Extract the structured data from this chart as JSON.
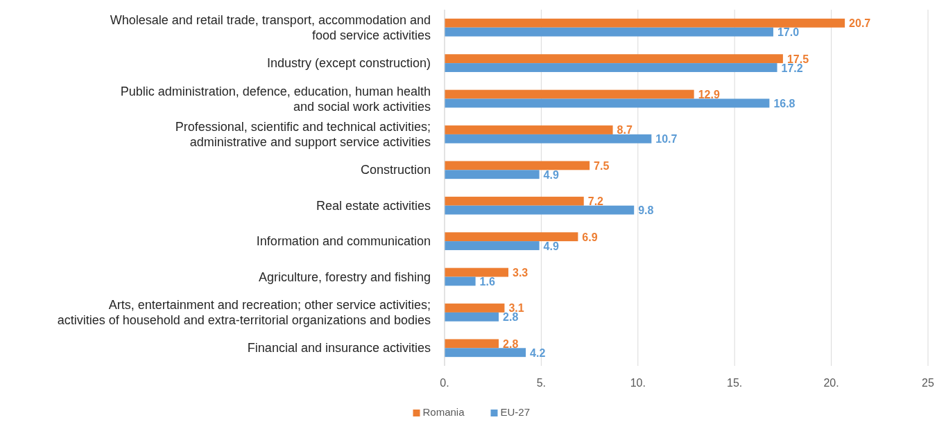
{
  "chart_data": {
    "type": "bar",
    "orientation": "horizontal",
    "categories": [
      "Wholesale and retail trade, transport, accommodation and\nfood service activities",
      "Industry (except construction)",
      "Public administration, defence, education, human health\nand social work activities",
      "Professional, scientific and technical activities;\nadministrative and support service activities",
      "Construction",
      "Real estate activities",
      "Information and communication",
      "Agriculture, forestry and fishing",
      "Arts, entertainment and recreation; other service activities;\nactivities of household and extra-territorial organizations and bodies",
      "Financial and insurance activities"
    ],
    "series": [
      {
        "name": "Romania",
        "color": "#ed7d31",
        "values": [
          20.7,
          17.5,
          12.9,
          8.7,
          7.5,
          7.2,
          6.9,
          3.3,
          3.1,
          2.8
        ],
        "value_labels": [
          "20.7",
          "17.5",
          "12.9",
          "8.7",
          "7.5",
          "7.2",
          "6.9",
          "3.3",
          "3.1",
          "2.8"
        ]
      },
      {
        "name": "EU-27",
        "color": "#5b9bd5",
        "values": [
          17.0,
          17.2,
          16.8,
          10.7,
          4.9,
          9.8,
          4.9,
          1.6,
          2.8,
          4.2
        ],
        "value_labels": [
          "17.0",
          "17.2",
          "16.8",
          "10.7",
          "4.9",
          "9.8",
          "4.9",
          "1.6",
          "2.8",
          "4.2"
        ]
      }
    ],
    "xlim": [
      0,
      25
    ],
    "xticks": [
      {
        "value": 0,
        "label": "0."
      },
      {
        "value": 5,
        "label": "5."
      },
      {
        "value": 10,
        "label": "10."
      },
      {
        "value": 15,
        "label": "15."
      },
      {
        "value": 20,
        "label": "20."
      },
      25
    ],
    "grid": "x",
    "legend": "bottom"
  }
}
